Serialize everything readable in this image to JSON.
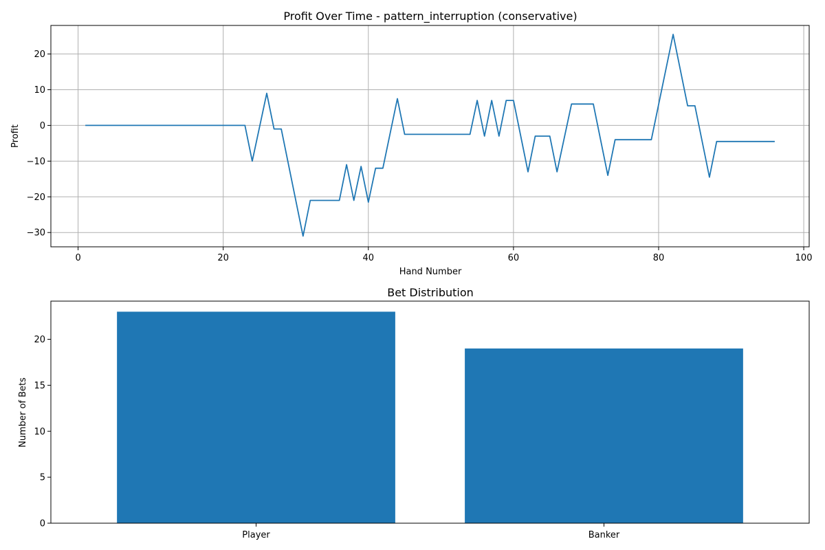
{
  "colors": {
    "series": "#1f77b4",
    "grid": "#b0b0b0",
    "axis": "#000000"
  },
  "chart_data": [
    {
      "type": "line",
      "title": "Profit Over Time - pattern_interruption (conservative)",
      "xlabel": "Hand Number",
      "ylabel": "Profit",
      "xlim": [
        -3.75,
        100.75
      ],
      "ylim": [
        -34,
        28
      ],
      "xticks": [
        0,
        20,
        40,
        60,
        80,
        100
      ],
      "yticks": [
        -30,
        -20,
        -10,
        0,
        10,
        20
      ],
      "grid": true,
      "series": [
        {
          "x": [
            1,
            23,
            24,
            26,
            27,
            28,
            31,
            32,
            36,
            37,
            38,
            39,
            40,
            41,
            42,
            44,
            45,
            54,
            55,
            56,
            57,
            58,
            59,
            60,
            62,
            63,
            65,
            66,
            68,
            71,
            73,
            74,
            79,
            82,
            84,
            85,
            87,
            88,
            96
          ],
          "y": [
            0,
            0,
            -10,
            9,
            -1,
            -1,
            -31,
            -21,
            -21,
            -11,
            -21,
            -11.5,
            -21.5,
            -12,
            -12,
            7.5,
            -2.5,
            -2.5,
            7,
            -3,
            7,
            -3,
            7,
            7,
            -13,
            -3,
            -3,
            -13,
            6,
            6,
            -14,
            -4,
            -4,
            25.5,
            5.5,
            5.5,
            -14.5,
            -4.5,
            -4.5
          ]
        }
      ]
    },
    {
      "type": "bar",
      "title": "Bet Distribution",
      "xlabel": "",
      "ylabel": "Number of Bets",
      "categories": [
        "Player",
        "Banker"
      ],
      "values": [
        23,
        19
      ],
      "ylim": [
        0,
        24.15
      ],
      "yticks": [
        0,
        5,
        10,
        15,
        20
      ],
      "grid": false
    }
  ]
}
